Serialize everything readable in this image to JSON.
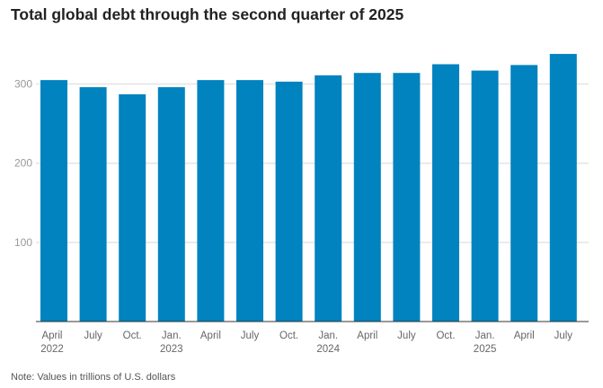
{
  "chart_data": {
    "type": "bar",
    "title": "Total global debt through the second quarter of 2025",
    "note": "Note: Values in trillions of U.S. dollars",
    "categories": [
      "April 2022",
      "July",
      "Oct.",
      "Jan. 2023",
      "April",
      "July",
      "Oct.",
      "Jan. 2024",
      "April",
      "July",
      "Oct.",
      "Jan. 2025",
      "April",
      "July"
    ],
    "x_labels": [
      [
        "April",
        "2022"
      ],
      [
        "July",
        ""
      ],
      [
        "Oct.",
        ""
      ],
      [
        "Jan.",
        "2023"
      ],
      [
        "April",
        ""
      ],
      [
        "July",
        ""
      ],
      [
        "Oct.",
        ""
      ],
      [
        "Jan.",
        "2024"
      ],
      [
        "April",
        ""
      ],
      [
        "July",
        ""
      ],
      [
        "Oct.",
        ""
      ],
      [
        "Jan.",
        "2025"
      ],
      [
        "April",
        ""
      ],
      [
        "July",
        ""
      ]
    ],
    "values": [
      305,
      296,
      287,
      296,
      305,
      305,
      303,
      311,
      314,
      314,
      325,
      317,
      324,
      338
    ],
    "yticks": [
      100,
      200,
      300
    ],
    "ylim": [
      0,
      340
    ],
    "grid": true,
    "bar_color": "#0083bf"
  }
}
